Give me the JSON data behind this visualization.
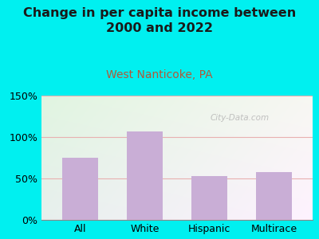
{
  "title": "Change in per capita income between\n2000 and 2022",
  "subtitle": "West Nanticoke, PA",
  "categories": [
    "All",
    "White",
    "Hispanic",
    "Multirace"
  ],
  "values": [
    75,
    107,
    53,
    58
  ],
  "bar_color": "#c9aed6",
  "title_fontsize": 11.5,
  "subtitle_fontsize": 10,
  "subtitle_color": "#b05a3a",
  "title_color": "#1a1a1a",
  "background_outer": "#00f0f0",
  "ylim": [
    0,
    150
  ],
  "yticks": [
    0,
    50,
    100,
    150
  ],
  "ytick_labels": [
    "0%",
    "50%",
    "100%",
    "150%"
  ],
  "watermark": "City-Data.com",
  "grid_color": "#e8b0b0",
  "axis_label_fontsize": 9
}
